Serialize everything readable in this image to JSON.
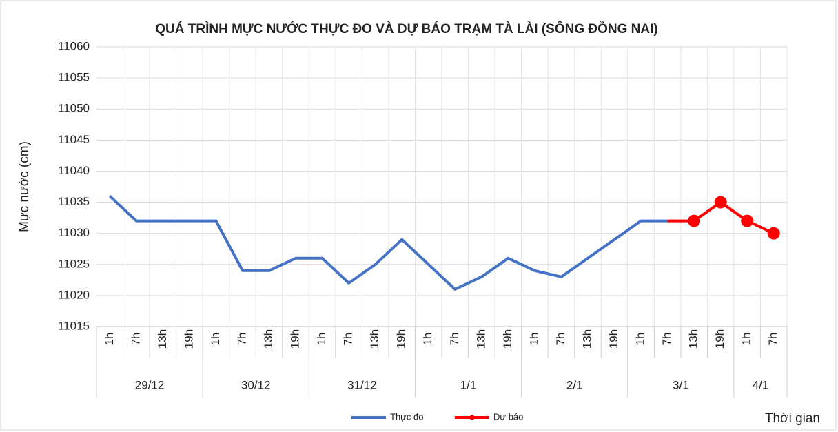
{
  "chart_data": {
    "type": "line",
    "title": "QUÁ TRÌNH MỰC NƯỚC THỰC ĐO VÀ DỰ BÁO TRẠM TÀ LÀI (SÔNG ĐỒNG NAI)",
    "y_label": "Mực nước (cm)",
    "x_label": "Thời gian",
    "category_groups": [
      {
        "name": "29/12",
        "categories": [
          "1h",
          "7h",
          "13h",
          "19h"
        ]
      },
      {
        "name": "30/12",
        "categories": [
          "1h",
          "7h",
          "13h",
          "19h"
        ]
      },
      {
        "name": "31/12",
        "categories": [
          "1h",
          "7h",
          "13h",
          "19h"
        ]
      },
      {
        "name": "1/1",
        "categories": [
          "1h",
          "7h",
          "13h",
          "19h"
        ]
      },
      {
        "name": "2/1",
        "categories": [
          "1h",
          "7h",
          "13h",
          "19h"
        ]
      },
      {
        "name": "3/1",
        "categories": [
          "1h",
          "7h",
          "13h",
          "19h"
        ]
      },
      {
        "name": "4/1",
        "categories": [
          "1h",
          "7h"
        ]
      }
    ],
    "series": [
      {
        "name": "Thực đo",
        "color": "#4472c4",
        "markers": false,
        "values": [
          11036,
          11032,
          11032,
          11032,
          11032,
          11024,
          11024,
          11026,
          11026,
          11022,
          11025,
          11029,
          11025,
          11021,
          11023,
          11026,
          11024,
          11023,
          11026,
          11029,
          11032,
          11032,
          null,
          null,
          null,
          null
        ]
      },
      {
        "name": "Dự báo",
        "color": "#ff0000",
        "markers": true,
        "values": [
          null,
          null,
          null,
          null,
          null,
          null,
          null,
          null,
          null,
          null,
          null,
          null,
          null,
          null,
          null,
          null,
          null,
          null,
          null,
          null,
          null,
          11032,
          11032,
          11035,
          11032,
          11030
        ]
      }
    ],
    "ylim": [
      11015,
      11060
    ],
    "yticks": [
      11015,
      11020,
      11025,
      11030,
      11035,
      11040,
      11045,
      11050,
      11055,
      11060
    ],
    "grid": true,
    "legend": "bottom"
  }
}
